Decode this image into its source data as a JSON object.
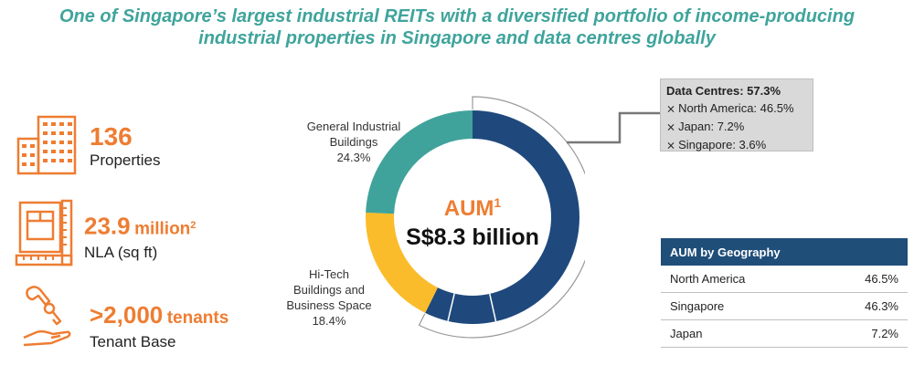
{
  "headline": {
    "line1": "One of Singapore’s largest industrial REITs with a diversified portfolio of income-producing",
    "line2": "industrial properties in Singapore and data centres globally"
  },
  "stats": [
    {
      "value": "136",
      "unit": "",
      "sup": "",
      "label": "Properties",
      "icon": "buildings-icon"
    },
    {
      "value": "23.9",
      "unit": "million",
      "sup": "2",
      "label": "NLA (sq ft)",
      "icon": "ruler-box-icon"
    },
    {
      "value": ">2,000",
      "unit": "tenants",
      "sup": "",
      "label": "Tenant Base",
      "icon": "hand-key-icon"
    }
  ],
  "aum": {
    "label": "AUM",
    "sup": "1",
    "value": "S$8.3 billion"
  },
  "chart_data": {
    "type": "pie",
    "donut": true,
    "slices": [
      {
        "label": "Data Centres",
        "value": 57.3,
        "color": "#1f497d"
      },
      {
        "label": "Hi-Tech Buildings and Business Space",
        "value": 18.4,
        "color": "#fbbc2c"
      },
      {
        "label": "General Industrial Buildings",
        "value": 24.3,
        "color": "#40a39b"
      }
    ],
    "slice_labels": {
      "gib": {
        "line1": "General Industrial",
        "line2": "Buildings",
        "pct": "24.3%"
      },
      "htb": {
        "line1": "Hi-Tech",
        "line2": "Buildings and",
        "line3": "Business Space",
        "pct": "18.4%"
      }
    }
  },
  "data_centres": {
    "title": "Data Centres: 57.3%",
    "items": [
      "North America: 46.5%",
      "Japan: 7.2%",
      "Singapore: 3.6%"
    ]
  },
  "geo_table": {
    "header": "AUM by Geography",
    "rows": [
      {
        "region": "North America",
        "pct": "46.5%"
      },
      {
        "region": "Singapore",
        "pct": "46.3%"
      },
      {
        "region": "Japan",
        "pct": "7.2%"
      }
    ]
  },
  "colors": {
    "orange": "#ee7d32",
    "teal": "#40a39b",
    "navy": "#1f497d",
    "yellow": "#fbbc2c"
  }
}
